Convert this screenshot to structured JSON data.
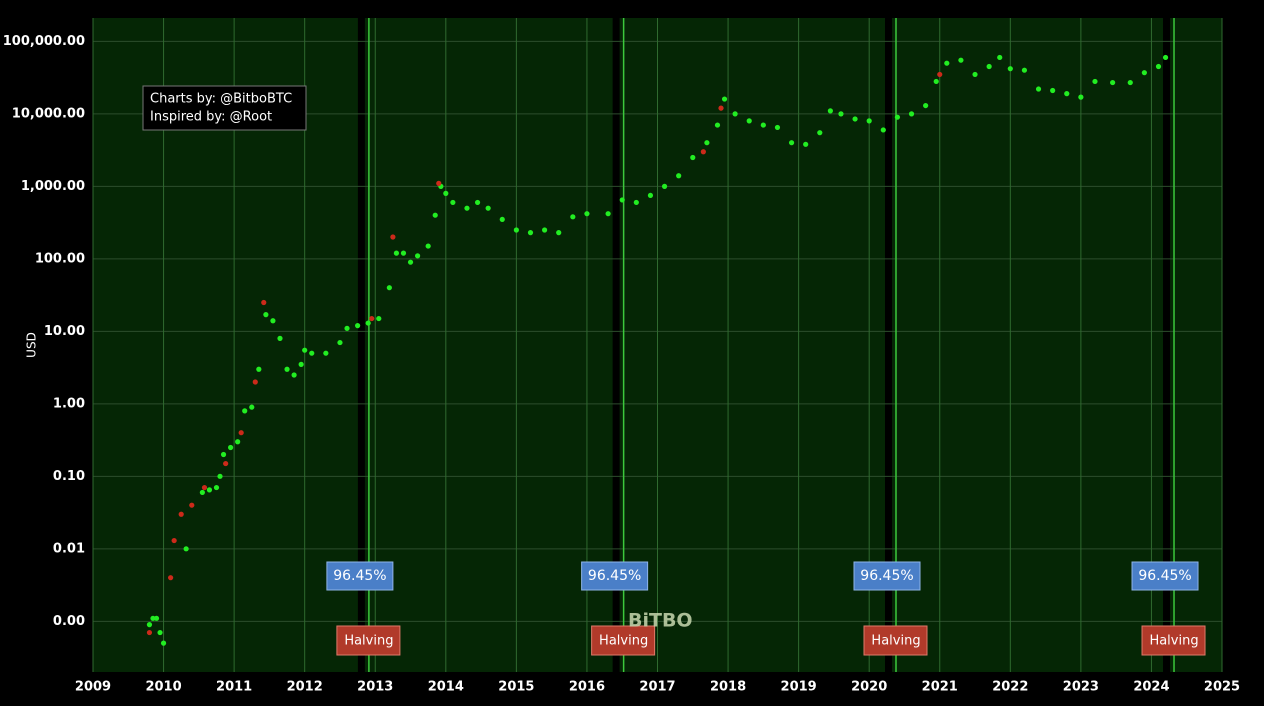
{
  "chart_data": {
    "type": "scatter",
    "y_label": "USD",
    "log_y": true,
    "grid": true,
    "background": "#052605",
    "xlim": [
      2009,
      2025
    ],
    "xticks": [
      2009,
      2010,
      2011,
      2012,
      2013,
      2014,
      2015,
      2016,
      2017,
      2018,
      2019,
      2020,
      2021,
      2022,
      2023,
      2024,
      2025
    ],
    "ylim": [
      0.0002,
      210000
    ],
    "yticks": [
      {
        "value": 0.001,
        "label": "0.00"
      },
      {
        "value": 0.01,
        "label": "0.01"
      },
      {
        "value": 0.1,
        "label": "0.10"
      },
      {
        "value": 1,
        "label": "1.00"
      },
      {
        "value": 10,
        "label": "10.00"
      },
      {
        "value": 100,
        "label": "100.00"
      },
      {
        "value": 1000,
        "label": "1,000.00"
      },
      {
        "value": 10000,
        "label": "10,000.00"
      },
      {
        "value": 100000,
        "label": "100,000.00"
      }
    ],
    "series": [
      {
        "color": "#22ee22",
        "x": [
          2009.8,
          2009.85,
          2009.9,
          2009.95,
          2010.0,
          2010.32,
          2010.55,
          2010.65,
          2010.75,
          2010.8,
          2010.85,
          2010.95,
          2011.05,
          2011.15,
          2011.25,
          2011.35,
          2011.45,
          2011.55,
          2011.65,
          2011.75,
          2011.85,
          2011.95,
          2012.0,
          2012.1,
          2012.3,
          2012.5,
          2012.6,
          2012.75,
          2012.9,
          2013.05,
          2013.2,
          2013.3,
          2013.4,
          2013.5,
          2013.6,
          2013.75,
          2013.85,
          2013.93,
          2014.0,
          2014.1,
          2014.3,
          2014.45,
          2014.6,
          2014.8,
          2015.0,
          2015.2,
          2015.4,
          2015.6,
          2015.8,
          2016.0,
          2016.3,
          2016.5,
          2016.7,
          2016.9,
          2017.1,
          2017.3,
          2017.5,
          2017.7,
          2017.85,
          2017.95,
          2018.1,
          2018.3,
          2018.5,
          2018.7,
          2018.9,
          2019.1,
          2019.3,
          2019.45,
          2019.6,
          2019.8,
          2020.0,
          2020.2,
          2020.4,
          2020.6,
          2020.8,
          2020.95,
          2021.1,
          2021.3,
          2021.5,
          2021.7,
          2021.85,
          2022.0,
          2022.2,
          2022.4,
          2022.6,
          2022.8,
          2023.0,
          2023.2,
          2023.45,
          2023.7,
          2023.9,
          2024.1,
          2024.2
        ],
        "values": [
          0.0009,
          0.0011,
          0.0011,
          0.0007,
          0.0005,
          0.01,
          0.06,
          0.065,
          0.07,
          0.1,
          0.2,
          0.25,
          0.3,
          0.8,
          0.9,
          3,
          17,
          14,
          8,
          3,
          2.5,
          3.5,
          5.5,
          5,
          5,
          7,
          11,
          12,
          13,
          15,
          40,
          120,
          120,
          90,
          110,
          150,
          400,
          1000,
          800,
          600,
          500,
          600,
          500,
          350,
          250,
          230,
          250,
          230,
          380,
          420,
          420,
          650,
          600,
          750,
          1000,
          1400,
          2500,
          4000,
          7000,
          16000,
          10000,
          8000,
          7000,
          6500,
          4000,
          3800,
          5500,
          11000,
          10000,
          8500,
          8000,
          6000,
          9000,
          10000,
          13000,
          28000,
          50000,
          55000,
          35000,
          45000,
          60000,
          42000,
          40000,
          22000,
          21000,
          19000,
          17000,
          28000,
          27000,
          27000,
          37000,
          45000,
          60000
        ]
      },
      {
        "color": "#cc2a1a",
        "x": [
          2009.8,
          2010.1,
          2010.15,
          2010.25,
          2010.4,
          2010.58,
          2010.88,
          2011.1,
          2011.3,
          2011.42,
          2012.95,
          2013.25,
          2013.9,
          2017.65,
          2017.9,
          2021.0
        ],
        "values": [
          0.0007,
          0.004,
          0.013,
          0.03,
          0.04,
          0.07,
          0.15,
          0.4,
          2,
          25,
          15,
          200,
          1100,
          3000,
          12000,
          35000
        ]
      }
    ],
    "halvings": [
      {
        "x": 2012.91,
        "label": "Halving",
        "stat": "96.45%"
      },
      {
        "x": 2016.52,
        "label": "Halving",
        "stat": "96.45%"
      },
      {
        "x": 2020.38,
        "label": "Halving",
        "stat": "96.45%"
      },
      {
        "x": 2024.32,
        "label": "Halving",
        "stat": "96.45%"
      }
    ],
    "credits": [
      "Charts by: @BitboBTC",
      "Inspired by: @Root"
    ],
    "watermark": "BiTBO"
  }
}
